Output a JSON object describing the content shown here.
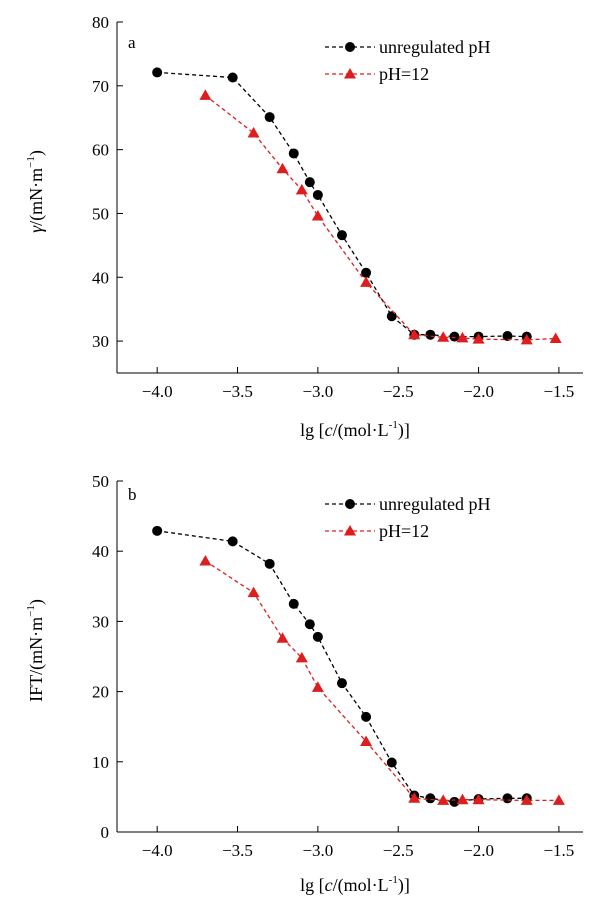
{
  "chart_data": [
    {
      "type": "line",
      "panel_label": "a",
      "xlabel": {
        "prefix": "lg [",
        "var": "c",
        "middle": "/(mol·L",
        "sup": "-1",
        "suffix": ")]"
      },
      "ylabel": {
        "var": "γ",
        "middle": "/(mN·m",
        "sup": "−1",
        "suffix": ")"
      },
      "xlim": [
        -4.25,
        -1.35
      ],
      "ylim": [
        25,
        80
      ],
      "xticks": [
        -4.0,
        -3.5,
        -3.0,
        -2.5,
        -2.0,
        -1.5
      ],
      "xtick_labels": [
        "−4.0",
        "−3.5",
        "−3.0",
        "−2.5",
        "−2.0",
        "−1.5"
      ],
      "yticks": [
        30,
        40,
        50,
        60,
        70,
        80
      ],
      "ytick_labels": [
        "30",
        "40",
        "50",
        "60",
        "70",
        "80"
      ],
      "grid": false,
      "legend_position": "top-right",
      "series": [
        {
          "name": "unregulated pH",
          "marker": "circle",
          "color": "#000000",
          "x": [
            -4.0,
            -3.53,
            -3.3,
            -3.15,
            -3.05,
            -3.0,
            -2.85,
            -2.7,
            -2.54,
            -2.4,
            -2.3,
            -2.15,
            -2.0,
            -1.82,
            -1.7
          ],
          "y": [
            72.1,
            71.3,
            65.1,
            59.4,
            54.9,
            52.9,
            46.6,
            40.7,
            33.9,
            31.0,
            31.0,
            30.7,
            30.7,
            30.8,
            30.7
          ]
        },
        {
          "name": "pH=12",
          "marker": "triangle",
          "color": "#dd1e1e",
          "x": [
            -3.7,
            -3.4,
            -3.22,
            -3.1,
            -3.0,
            -2.7,
            -2.4,
            -2.22,
            -2.1,
            -2.0,
            -1.7,
            -1.52
          ],
          "y": [
            68.5,
            62.6,
            57.0,
            53.7,
            49.6,
            39.2,
            31.0,
            30.6,
            30.5,
            30.3,
            30.2,
            30.4
          ]
        }
      ]
    },
    {
      "type": "line",
      "panel_label": "b",
      "xlabel": {
        "prefix": "lg [",
        "var": "c",
        "middle": "/(mol·L",
        "sup": "-1",
        "suffix": ")]"
      },
      "ylabel": {
        "var": "IFT",
        "middle": "/(mN·m",
        "sup": "−1",
        "suffix": ")"
      },
      "xlim": [
        -4.25,
        -1.35
      ],
      "ylim": [
        0,
        50
      ],
      "xticks": [
        -4.0,
        -3.5,
        -3.0,
        -2.5,
        -2.0,
        -1.5
      ],
      "xtick_labels": [
        "−4.0",
        "−3.5",
        "−3.0",
        "−2.5",
        "−2.0",
        "−1.5"
      ],
      "yticks": [
        0,
        10,
        20,
        30,
        40,
        50
      ],
      "ytick_labels": [
        "0",
        "10",
        "20",
        "30",
        "40",
        "50"
      ],
      "grid": false,
      "legend_position": "top-right",
      "series": [
        {
          "name": "unregulated pH",
          "marker": "circle",
          "color": "#000000",
          "x": [
            -4.0,
            -3.53,
            -3.3,
            -3.15,
            -3.05,
            -3.0,
            -2.85,
            -2.7,
            -2.54,
            -2.4,
            -2.3,
            -2.15,
            -2.0,
            -1.82,
            -1.7
          ],
          "y": [
            42.9,
            41.4,
            38.2,
            32.5,
            29.6,
            27.8,
            21.2,
            16.4,
            9.9,
            5.2,
            4.8,
            4.3,
            4.7,
            4.8,
            4.8
          ]
        },
        {
          "name": "pH=12",
          "marker": "triangle",
          "color": "#dd1e1e",
          "x": [
            -3.7,
            -3.4,
            -3.22,
            -3.1,
            -3.0,
            -2.7,
            -2.4,
            -2.22,
            -2.1,
            -2.0,
            -1.7,
            -1.5
          ],
          "y": [
            38.6,
            34.1,
            27.6,
            24.8,
            20.6,
            12.9,
            4.8,
            4.5,
            4.6,
            4.6,
            4.5,
            4.5
          ]
        }
      ]
    }
  ]
}
